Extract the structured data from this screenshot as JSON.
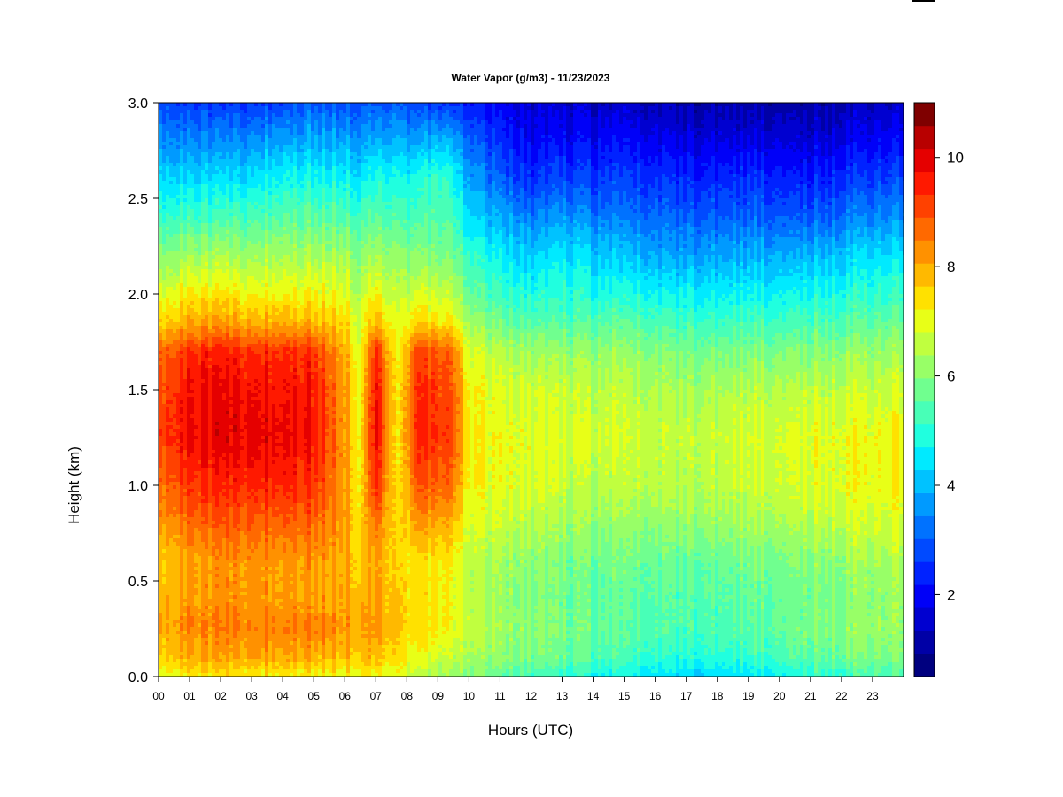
{
  "chart_data": {
    "type": "heatmap",
    "title": "Water Vapor (g/m3) - 11/23/2023",
    "xlabel": "Hours (UTC)",
    "ylabel": "Height (km)",
    "xlim": [
      0,
      24
    ],
    "ylim": [
      0.0,
      3.0
    ],
    "x_ticks": [
      "00",
      "01",
      "02",
      "03",
      "04",
      "05",
      "06",
      "07",
      "08",
      "09",
      "10",
      "11",
      "12",
      "13",
      "14",
      "15",
      "16",
      "17",
      "18",
      "19",
      "20",
      "21",
      "22",
      "23"
    ],
    "y_ticks": [
      "0.0",
      "0.5",
      "1.0",
      "1.5",
      "2.0",
      "2.5",
      "3.0"
    ],
    "colorbar": {
      "range": [
        0.5,
        11
      ],
      "ticks": [
        "2",
        "4",
        "6",
        "8",
        "10"
      ],
      "colors": [
        "#00007f",
        "#0000a6",
        "#0000d0",
        "#0000f8",
        "#0022ff",
        "#004aff",
        "#0072ff",
        "#009aff",
        "#00c2ff",
        "#00eaff",
        "#20ffdf",
        "#48ffb7",
        "#70ff8f",
        "#98ff67",
        "#c0ff3f",
        "#e8ff17",
        "#ffe100",
        "#ffb900",
        "#ff9100",
        "#ff6900",
        "#ff4100",
        "#ff1900",
        "#e50000",
        "#b80000",
        "#7f0000"
      ]
    },
    "profile_heights_km": [
      0.0,
      0.1,
      0.25,
      0.4,
      0.6,
      0.8,
      1.0,
      1.25,
      1.5,
      1.7,
      1.85,
      2.0,
      2.2,
      2.4,
      2.6,
      2.8,
      3.0
    ],
    "profile_hours": [
      0,
      1,
      2,
      3,
      4,
      5,
      5.9,
      6.5,
      7.0,
      7.7,
      8.3,
      9.0,
      9.5,
      10,
      11,
      12,
      13,
      15,
      17,
      19,
      21,
      23,
      24
    ],
    "profiles_g_m3": [
      [
        7.0,
        7.6,
        8.0,
        7.9,
        7.7,
        8.2,
        8.7,
        9.2,
        9.0,
        8.7,
        7.6,
        6.9,
        6.0,
        5.2,
        4.4,
        3.6,
        2.8
      ],
      [
        7.2,
        7.9,
        8.3,
        8.1,
        8.0,
        8.6,
        9.2,
        9.7,
        9.6,
        9.3,
        7.9,
        7.2,
        6.2,
        5.2,
        4.3,
        3.4,
        2.6
      ],
      [
        7.3,
        8.0,
        8.4,
        8.2,
        8.2,
        8.8,
        9.4,
        9.9,
        9.8,
        9.5,
        8.1,
        7.3,
        6.3,
        5.3,
        4.3,
        3.4,
        2.5
      ],
      [
        7.3,
        8.1,
        8.5,
        8.3,
        8.3,
        8.9,
        9.5,
        10.0,
        9.8,
        9.4,
        8.0,
        7.2,
        6.3,
        5.4,
        4.5,
        3.6,
        2.6
      ],
      [
        7.3,
        8.1,
        8.5,
        8.2,
        8.2,
        8.8,
        9.5,
        9.9,
        9.7,
        9.4,
        8.0,
        7.2,
        6.4,
        5.6,
        4.8,
        3.8,
        2.8
      ],
      [
        7.2,
        8.0,
        8.5,
        8.2,
        8.2,
        8.8,
        9.3,
        9.7,
        9.6,
        9.3,
        7.9,
        7.2,
        6.4,
        5.6,
        4.8,
        3.9,
        3.0
      ],
      [
        7.1,
        7.8,
        8.2,
        8.1,
        8.0,
        8.2,
        8.3,
        8.4,
        8.3,
        8.1,
        7.6,
        7.0,
        6.3,
        5.5,
        4.7,
        3.8,
        2.9
      ],
      [
        7.2,
        7.8,
        8.1,
        8.0,
        7.7,
        7.6,
        7.4,
        7.3,
        7.2,
        7.1,
        6.9,
        6.6,
        6.1,
        5.4,
        4.6,
        3.8,
        2.9
      ],
      [
        7.0,
        7.7,
        8.1,
        8.0,
        8.0,
        8.6,
        9.3,
        9.8,
        9.7,
        9.3,
        7.8,
        7.1,
        6.2,
        5.4,
        4.8,
        3.8,
        2.8
      ],
      [
        6.8,
        7.2,
        7.6,
        7.5,
        7.3,
        7.2,
        7.1,
        7.0,
        7.0,
        6.9,
        6.7,
        6.4,
        5.9,
        5.3,
        4.6,
        3.7,
        2.8
      ],
      [
        6.5,
        7.0,
        7.4,
        7.4,
        7.4,
        8.1,
        8.9,
        9.4,
        9.3,
        9.0,
        7.5,
        6.8,
        6.0,
        5.3,
        4.8,
        3.7,
        2.7
      ],
      [
        6.3,
        6.8,
        7.3,
        7.3,
        7.3,
        8.0,
        8.8,
        9.3,
        9.2,
        8.9,
        7.4,
        6.7,
        5.9,
        5.4,
        5.2,
        4.0,
        2.6
      ],
      [
        6.1,
        6.6,
        7.0,
        7.0,
        7.1,
        7.8,
        8.5,
        9.0,
        8.8,
        8.6,
        7.2,
        6.5,
        5.8,
        5.2,
        4.8,
        3.8,
        2.5
      ],
      [
        5.9,
        6.3,
        6.6,
        6.5,
        6.5,
        6.8,
        7.1,
        7.2,
        7.1,
        6.8,
        6.2,
        5.6,
        5.0,
        4.3,
        3.7,
        3.0,
        2.2
      ],
      [
        5.6,
        6.0,
        6.2,
        6.1,
        6.2,
        6.6,
        6.9,
        7.0,
        6.8,
        6.4,
        5.7,
        5.1,
        4.5,
        3.8,
        3.0,
        2.4,
        1.8
      ],
      [
        5.2,
        5.8,
        6.0,
        5.9,
        6.0,
        6.4,
        6.8,
        6.9,
        6.7,
        6.2,
        5.4,
        4.8,
        4.1,
        3.3,
        2.4,
        1.9,
        1.5
      ],
      [
        5.0,
        5.6,
        5.8,
        5.7,
        5.8,
        6.2,
        6.6,
        6.8,
        6.6,
        6.1,
        5.4,
        5.0,
        4.5,
        3.6,
        2.7,
        2.0,
        1.5
      ],
      [
        4.6,
        5.2,
        5.5,
        5.5,
        5.7,
        6.1,
        6.5,
        6.7,
        6.5,
        6.1,
        5.5,
        4.8,
        4.0,
        3.2,
        2.6,
        2.0,
        1.4
      ],
      [
        4.3,
        4.9,
        5.3,
        5.4,
        5.6,
        6.1,
        6.5,
        6.6,
        6.3,
        5.8,
        5.2,
        4.6,
        3.7,
        3.0,
        2.4,
        1.7,
        1.1
      ],
      [
        4.5,
        5.1,
        5.5,
        5.6,
        5.8,
        6.3,
        6.7,
        6.8,
        6.5,
        5.9,
        5.3,
        4.7,
        3.9,
        3.1,
        2.5,
        1.8,
        1.2
      ],
      [
        5.0,
        5.6,
        5.9,
        5.8,
        6.0,
        6.5,
        6.9,
        7.0,
        6.6,
        6.0,
        5.4,
        4.8,
        4.0,
        3.0,
        2.3,
        1.7,
        1.1
      ],
      [
        5.4,
        5.9,
        6.2,
        6.1,
        6.3,
        6.8,
        7.1,
        7.1,
        6.7,
        6.2,
        5.6,
        5.1,
        4.4,
        3.5,
        2.7,
        2.0,
        1.4
      ],
      [
        5.4,
        5.9,
        6.2,
        6.2,
        6.4,
        6.9,
        7.2,
        7.2,
        6.8,
        6.3,
        5.7,
        5.2,
        4.5,
        3.6,
        2.8,
        2.1,
        1.4
      ]
    ]
  }
}
